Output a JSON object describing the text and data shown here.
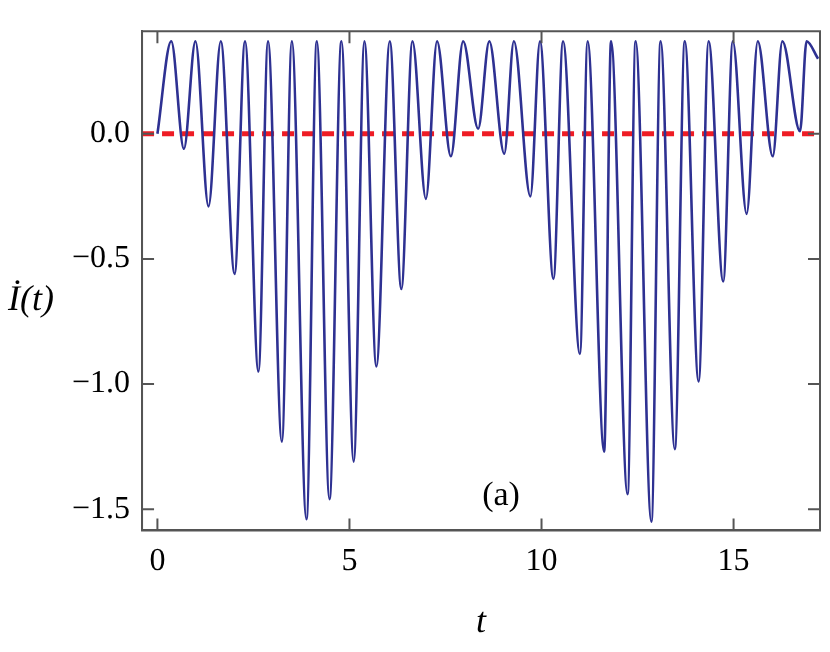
{
  "chart_data": {
    "type": "line",
    "xlabel": "t",
    "ylabel": "İ(t)",
    "annotations": [
      "(a)"
    ],
    "xlim": [
      -0.4,
      17.25
    ],
    "ylim": [
      -1.585,
      0.41
    ],
    "xticks": [
      0,
      5,
      10,
      15
    ],
    "yticks": [
      {
        "value": -1.5,
        "label": "−1.5"
      },
      {
        "value": -1.0,
        "label": "−1.0"
      },
      {
        "value": -0.5,
        "label": "−0.5"
      },
      {
        "value": 0.0,
        "label": "0.0"
      }
    ],
    "grid": false,
    "legend": false,
    "marker": "none",
    "line_style": "solid",
    "ref_lines": [
      {
        "axis": "y",
        "value": 0,
        "color": "#ee1c25",
        "line_style": "dashed"
      }
    ],
    "series": [
      {
        "color": "#2e3192",
        "x": [
          0,
          0.36,
          0.69,
          0.99,
          1.33,
          1.65,
          2.01,
          2.28,
          2.63,
          2.88,
          3.24,
          3.5,
          3.88,
          4.15,
          4.48,
          4.79,
          5.11,
          5.39,
          5.7,
          6.05,
          6.35,
          6.64,
          6.99,
          7.28,
          7.64,
          7.96,
          8.35,
          8.64,
          9.03,
          9.28,
          9.71,
          9.96,
          10.31,
          10.56,
          11.0,
          11.2,
          11.63,
          11.81,
          12.24,
          12.45,
          12.86,
          13.1,
          13.47,
          13.73,
          14.09,
          14.35,
          14.73,
          14.98,
          15.34,
          15.63,
          16.02,
          16.27,
          16.73,
          16.9,
          17.2
        ],
        "values": [
          0,
          0.37,
          -0.06,
          0.37,
          -0.29,
          0.37,
          -0.56,
          0.37,
          -0.95,
          0.37,
          -1.23,
          0.37,
          -1.54,
          0.37,
          -1.46,
          0.37,
          -1.31,
          0.37,
          -0.93,
          0.37,
          -0.62,
          0.37,
          -0.26,
          0.37,
          -0.09,
          0.37,
          0.02,
          0.37,
          -0.08,
          0.37,
          -0.25,
          0.37,
          -0.58,
          0.37,
          -0.88,
          0.37,
          -1.27,
          0.37,
          -1.44,
          0.37,
          -1.55,
          0.37,
          -1.26,
          0.37,
          -0.99,
          0.37,
          -0.59,
          0.37,
          -0.32,
          0.37,
          -0.09,
          0.37,
          0.01,
          0.37,
          0.3
        ]
      }
    ]
  }
}
